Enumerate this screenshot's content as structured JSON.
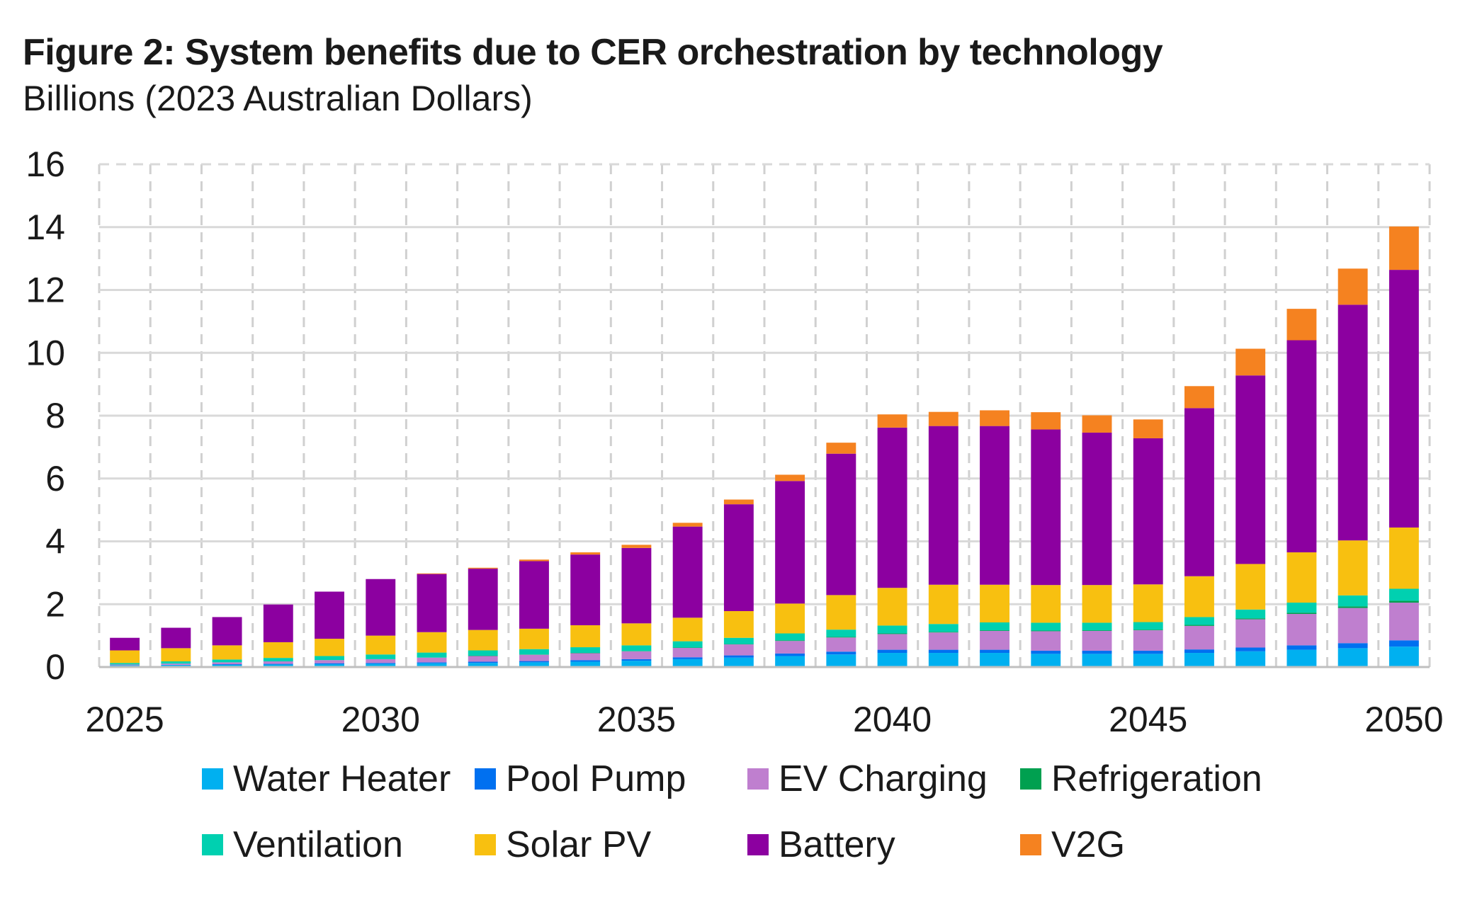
{
  "chart_data": {
    "type": "bar",
    "stacked": true,
    "title": "Figure 2: System benefits due to CER orchestration by technology",
    "subtitle": "Billions (2023 Australian Dollars)",
    "xlabel": "",
    "ylabel": "",
    "ylim": [
      0,
      16
    ],
    "yticks": [
      0,
      2,
      4,
      6,
      8,
      10,
      12,
      14,
      16
    ],
    "xtick_labels": [
      "2025",
      "2030",
      "2035",
      "2040",
      "2045",
      "2050"
    ],
    "grid": "dashed vertical and horizontal",
    "legend_position": "bottom",
    "categories": [
      2025,
      2026,
      2027,
      2028,
      2029,
      2030,
      2031,
      2032,
      2033,
      2034,
      2035,
      2036,
      2037,
      2038,
      2039,
      2040,
      2041,
      2042,
      2043,
      2044,
      2045,
      2046,
      2047,
      2048,
      2049,
      2050
    ],
    "series": [
      {
        "name": "Water Heater",
        "color": "#00b0f0",
        "values": [
          0.05,
          0.06,
          0.07,
          0.08,
          0.09,
          0.1,
          0.12,
          0.13,
          0.15,
          0.17,
          0.2,
          0.25,
          0.3,
          0.35,
          0.4,
          0.45,
          0.45,
          0.45,
          0.42,
          0.42,
          0.42,
          0.45,
          0.5,
          0.55,
          0.6,
          0.65
        ]
      },
      {
        "name": "Pool Pump",
        "color": "#0070f0",
        "values": [
          0.01,
          0.01,
          0.02,
          0.02,
          0.03,
          0.03,
          0.03,
          0.04,
          0.04,
          0.05,
          0.05,
          0.06,
          0.07,
          0.08,
          0.09,
          0.1,
          0.1,
          0.1,
          0.1,
          0.1,
          0.1,
          0.11,
          0.12,
          0.14,
          0.16,
          0.2
        ]
      },
      {
        "name": "EV Charging",
        "color": "#bf7fcf",
        "values": [
          0.02,
          0.04,
          0.06,
          0.08,
          0.1,
          0.12,
          0.15,
          0.18,
          0.2,
          0.22,
          0.25,
          0.3,
          0.35,
          0.4,
          0.45,
          0.5,
          0.55,
          0.6,
          0.62,
          0.63,
          0.65,
          0.75,
          0.9,
          1.0,
          1.12,
          1.2
        ]
      },
      {
        "name": "Refrigeration",
        "color": "#00a050",
        "values": [
          0.0,
          0.0,
          0.0,
          0.0,
          0.0,
          0.0,
          0.0,
          0.01,
          0.01,
          0.01,
          0.01,
          0.01,
          0.01,
          0.02,
          0.02,
          0.02,
          0.02,
          0.02,
          0.02,
          0.02,
          0.02,
          0.03,
          0.03,
          0.04,
          0.05,
          0.06
        ]
      },
      {
        "name": "Ventilation",
        "color": "#00d0b0",
        "values": [
          0.05,
          0.07,
          0.09,
          0.11,
          0.13,
          0.15,
          0.16,
          0.17,
          0.17,
          0.18,
          0.18,
          0.2,
          0.2,
          0.22,
          0.23,
          0.25,
          0.25,
          0.25,
          0.25,
          0.24,
          0.24,
          0.25,
          0.28,
          0.32,
          0.35,
          0.38
        ]
      },
      {
        "name": "Solar PV",
        "color": "#f8c010",
        "values": [
          0.4,
          0.42,
          0.45,
          0.5,
          0.55,
          0.6,
          0.65,
          0.65,
          0.65,
          0.7,
          0.7,
          0.75,
          0.85,
          0.95,
          1.1,
          1.2,
          1.25,
          1.2,
          1.2,
          1.2,
          1.2,
          1.3,
          1.45,
          1.6,
          1.75,
          1.95
        ]
      },
      {
        "name": "Battery",
        "color": "#8c00a0",
        "values": [
          0.4,
          0.65,
          0.9,
          1.2,
          1.5,
          1.8,
          1.85,
          1.95,
          2.15,
          2.25,
          2.4,
          2.9,
          3.4,
          3.9,
          4.5,
          5.1,
          5.05,
          5.05,
          4.95,
          4.85,
          4.65,
          5.35,
          6.0,
          6.75,
          7.5,
          8.2
        ]
      },
      {
        "name": "V2G",
        "color": "#f58220",
        "values": [
          0.0,
          0.0,
          0.0,
          0.0,
          0.0,
          0.0,
          0.02,
          0.03,
          0.05,
          0.07,
          0.1,
          0.12,
          0.15,
          0.2,
          0.35,
          0.42,
          0.45,
          0.5,
          0.55,
          0.55,
          0.6,
          0.7,
          0.85,
          1.0,
          1.15,
          1.38
        ]
      }
    ]
  }
}
